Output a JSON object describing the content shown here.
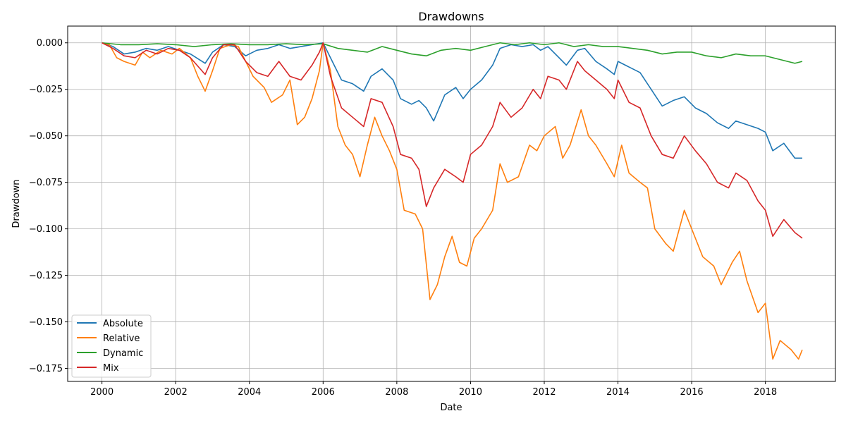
{
  "chart_data": {
    "type": "line",
    "title": "Drawdowns",
    "xlabel": "Date",
    "ylabel": "Drawdown",
    "xlim": [
      1999.07,
      2019.9
    ],
    "ylim": [
      -0.182,
      0.009
    ],
    "x_ticks": [
      2000,
      2002,
      2004,
      2006,
      2008,
      2010,
      2012,
      2014,
      2016,
      2018
    ],
    "y_ticks": [
      0.0,
      -0.025,
      -0.05,
      -0.075,
      -0.1,
      -0.125,
      -0.15,
      -0.175
    ],
    "y_tick_labels": [
      "0.000",
      "−0.025",
      "−0.050",
      "−0.075",
      "−0.100",
      "−0.125",
      "−0.150",
      "−0.175"
    ],
    "grid": true,
    "legend_position": "lower-left",
    "series": [
      {
        "name": "Absolute",
        "color": "#1f77b4",
        "x": [
          2000.0,
          2000.3,
          2000.6,
          2000.9,
          2001.2,
          2001.5,
          2001.8,
          2002.1,
          2002.4,
          2002.8,
          2003.0,
          2003.3,
          2003.6,
          2003.9,
          2004.2,
          2004.5,
          2004.8,
          2005.1,
          2005.4,
          2005.7,
          2006.0,
          2006.2,
          2006.5,
          2006.8,
          2007.1,
          2007.3,
          2007.6,
          2007.9,
          2008.1,
          2008.4,
          2008.6,
          2008.8,
          2009.0,
          2009.3,
          2009.6,
          2009.8,
          2010.0,
          2010.3,
          2010.6,
          2010.8,
          2011.1,
          2011.4,
          2011.7,
          2011.9,
          2012.1,
          2012.4,
          2012.6,
          2012.9,
          2013.1,
          2013.4,
          2013.7,
          2013.9,
          2014.0,
          2014.3,
          2014.6,
          2014.9,
          2015.2,
          2015.5,
          2015.8,
          2016.1,
          2016.4,
          2016.7,
          2017.0,
          2017.2,
          2017.5,
          2017.8,
          2018.0,
          2018.2,
          2018.5,
          2018.8,
          2019.0
        ],
        "y": [
          0.0,
          -0.002,
          -0.006,
          -0.005,
          -0.003,
          -0.004,
          -0.002,
          -0.004,
          -0.006,
          -0.011,
          -0.005,
          -0.001,
          -0.002,
          -0.007,
          -0.004,
          -0.003,
          -0.001,
          -0.003,
          -0.002,
          -0.001,
          0.0,
          -0.008,
          -0.02,
          -0.022,
          -0.026,
          -0.018,
          -0.014,
          -0.02,
          -0.03,
          -0.033,
          -0.031,
          -0.035,
          -0.042,
          -0.028,
          -0.024,
          -0.03,
          -0.025,
          -0.02,
          -0.012,
          -0.003,
          -0.001,
          -0.002,
          -0.001,
          -0.004,
          -0.002,
          -0.008,
          -0.012,
          -0.004,
          -0.003,
          -0.01,
          -0.014,
          -0.017,
          -0.01,
          -0.013,
          -0.016,
          -0.025,
          -0.034,
          -0.031,
          -0.029,
          -0.035,
          -0.038,
          -0.043,
          -0.046,
          -0.042,
          -0.044,
          -0.046,
          -0.048,
          -0.058,
          -0.054,
          -0.062,
          -0.062
        ]
      },
      {
        "name": "Relative",
        "color": "#ff7f0e",
        "x": [
          2000.0,
          2000.2,
          2000.4,
          2000.6,
          2000.9,
          2001.1,
          2001.3,
          2001.6,
          2001.9,
          2002.1,
          2002.4,
          2002.6,
          2002.8,
          2003.0,
          2003.2,
          2003.5,
          2003.7,
          2003.9,
          2004.1,
          2004.4,
          2004.6,
          2004.9,
          2005.1,
          2005.3,
          2005.5,
          2005.7,
          2005.9,
          2006.0,
          2006.2,
          2006.4,
          2006.6,
          2006.8,
          2007.0,
          2007.2,
          2007.4,
          2007.6,
          2007.8,
          2008.0,
          2008.2,
          2008.5,
          2008.7,
          2008.9,
          2009.1,
          2009.3,
          2009.5,
          2009.7,
          2009.9,
          2010.1,
          2010.3,
          2010.6,
          2010.8,
          2011.0,
          2011.3,
          2011.6,
          2011.8,
          2012.0,
          2012.3,
          2012.5,
          2012.7,
          2013.0,
          2013.2,
          2013.4,
          2013.7,
          2013.9,
          2014.1,
          2014.3,
          2014.6,
          2014.8,
          2015.0,
          2015.3,
          2015.5,
          2015.8,
          2016.0,
          2016.3,
          2016.6,
          2016.8,
          2017.1,
          2017.3,
          2017.5,
          2017.8,
          2018.0,
          2018.2,
          2018.4,
          2018.7,
          2018.9,
          2019.0
        ],
        "y": [
          0.0,
          -0.001,
          -0.008,
          -0.01,
          -0.012,
          -0.005,
          -0.008,
          -0.004,
          -0.006,
          -0.003,
          -0.008,
          -0.018,
          -0.026,
          -0.015,
          -0.003,
          -0.001,
          -0.002,
          -0.01,
          -0.018,
          -0.024,
          -0.032,
          -0.028,
          -0.02,
          -0.044,
          -0.04,
          -0.03,
          -0.015,
          0.0,
          -0.015,
          -0.045,
          -0.055,
          -0.06,
          -0.072,
          -0.055,
          -0.04,
          -0.05,
          -0.058,
          -0.068,
          -0.09,
          -0.092,
          -0.1,
          -0.138,
          -0.13,
          -0.115,
          -0.104,
          -0.118,
          -0.12,
          -0.105,
          -0.1,
          -0.09,
          -0.065,
          -0.075,
          -0.072,
          -0.055,
          -0.058,
          -0.05,
          -0.045,
          -0.062,
          -0.055,
          -0.036,
          -0.05,
          -0.055,
          -0.065,
          -0.072,
          -0.055,
          -0.07,
          -0.075,
          -0.078,
          -0.1,
          -0.108,
          -0.112,
          -0.09,
          -0.1,
          -0.115,
          -0.12,
          -0.13,
          -0.118,
          -0.112,
          -0.128,
          -0.145,
          -0.14,
          -0.17,
          -0.16,
          -0.165,
          -0.17,
          -0.165
        ]
      },
      {
        "name": "Dynamic",
        "color": "#2ca02c",
        "x": [
          2000.0,
          2000.5,
          2001.0,
          2001.5,
          2002.0,
          2002.5,
          2003.0,
          2003.5,
          2004.0,
          2004.5,
          2005.0,
          2005.5,
          2006.0,
          2006.4,
          2006.8,
          2007.2,
          2007.6,
          2008.0,
          2008.4,
          2008.8,
          2009.2,
          2009.6,
          2010.0,
          2010.4,
          2010.8,
          2011.2,
          2011.6,
          2012.0,
          2012.4,
          2012.8,
          2013.2,
          2013.6,
          2014.0,
          2014.4,
          2014.8,
          2015.2,
          2015.6,
          2016.0,
          2016.4,
          2016.8,
          2017.2,
          2017.6,
          2018.0,
          2018.4,
          2018.8,
          2019.0
        ],
        "y": [
          0.0,
          -0.001,
          -0.001,
          -0.0005,
          -0.001,
          -0.002,
          -0.001,
          -0.0005,
          -0.001,
          -0.001,
          -0.0005,
          -0.001,
          -0.0005,
          -0.003,
          -0.004,
          -0.005,
          -0.002,
          -0.004,
          -0.006,
          -0.007,
          -0.004,
          -0.003,
          -0.004,
          -0.002,
          0.0,
          -0.001,
          0.0,
          -0.001,
          0.0,
          -0.002,
          -0.001,
          -0.002,
          -0.002,
          -0.003,
          -0.004,
          -0.006,
          -0.005,
          -0.005,
          -0.007,
          -0.008,
          -0.006,
          -0.007,
          -0.007,
          -0.009,
          -0.011,
          -0.01
        ]
      },
      {
        "name": "Mix",
        "color": "#d62728",
        "x": [
          2000.0,
          2000.3,
          2000.6,
          2000.9,
          2001.2,
          2001.5,
          2001.8,
          2002.1,
          2002.4,
          2002.8,
          2003.0,
          2003.3,
          2003.6,
          2003.9,
          2004.2,
          2004.5,
          2004.8,
          2005.1,
          2005.4,
          2005.7,
          2005.9,
          2006.0,
          2006.2,
          2006.5,
          2006.8,
          2007.1,
          2007.3,
          2007.6,
          2007.9,
          2008.1,
          2008.4,
          2008.6,
          2008.8,
          2009.0,
          2009.3,
          2009.6,
          2009.8,
          2010.0,
          2010.3,
          2010.6,
          2010.8,
          2011.1,
          2011.4,
          2011.7,
          2011.9,
          2012.1,
          2012.4,
          2012.6,
          2012.9,
          2013.1,
          2013.4,
          2013.7,
          2013.9,
          2014.0,
          2014.3,
          2014.6,
          2014.9,
          2015.2,
          2015.5,
          2015.8,
          2016.1,
          2016.4,
          2016.7,
          2017.0,
          2017.2,
          2017.5,
          2017.8,
          2018.0,
          2018.2,
          2018.5,
          2018.8,
          2019.0
        ],
        "y": [
          0.0,
          -0.003,
          -0.007,
          -0.008,
          -0.004,
          -0.006,
          -0.003,
          -0.004,
          -0.008,
          -0.017,
          -0.008,
          -0.001,
          -0.001,
          -0.01,
          -0.016,
          -0.018,
          -0.01,
          -0.018,
          -0.02,
          -0.012,
          -0.005,
          0.0,
          -0.018,
          -0.035,
          -0.04,
          -0.045,
          -0.03,
          -0.032,
          -0.045,
          -0.06,
          -0.062,
          -0.068,
          -0.088,
          -0.078,
          -0.068,
          -0.072,
          -0.075,
          -0.06,
          -0.055,
          -0.045,
          -0.032,
          -0.04,
          -0.035,
          -0.025,
          -0.03,
          -0.018,
          -0.02,
          -0.025,
          -0.01,
          -0.015,
          -0.02,
          -0.025,
          -0.03,
          -0.02,
          -0.032,
          -0.035,
          -0.05,
          -0.06,
          -0.062,
          -0.05,
          -0.058,
          -0.065,
          -0.075,
          -0.078,
          -0.07,
          -0.074,
          -0.085,
          -0.09,
          -0.104,
          -0.095,
          -0.102,
          -0.105
        ]
      }
    ]
  }
}
